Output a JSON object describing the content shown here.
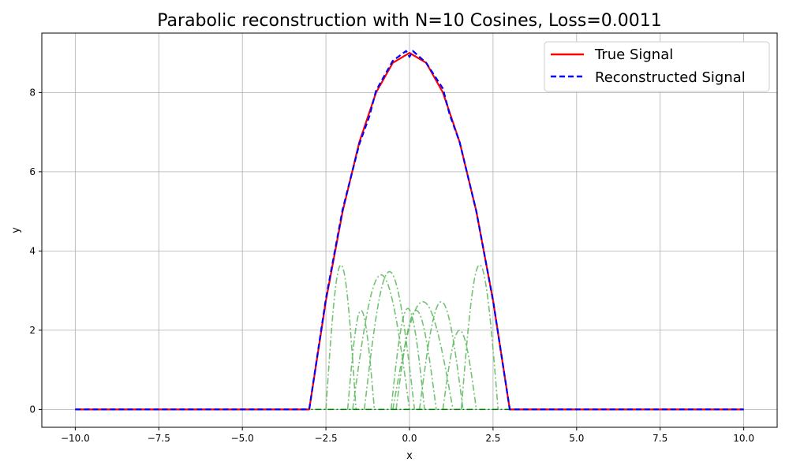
{
  "chart_data": {
    "type": "line",
    "title": "Parabolic reconstruction with N=10 Cosines, Loss=0.0011",
    "xlabel": "x",
    "ylabel": "y",
    "xlim": [
      -11,
      11
    ],
    "ylim": [
      -0.45,
      9.5
    ],
    "xticks": [
      -10,
      -7.5,
      -5,
      -2.5,
      0,
      2.5,
      5,
      7.5,
      10
    ],
    "xtick_labels": [
      "−10.0",
      "−7.5",
      "−5.0",
      "−2.5",
      "0.0",
      "2.5",
      "5.0",
      "7.5",
      "10.0"
    ],
    "yticks": [
      0,
      2,
      4,
      6,
      8
    ],
    "ytick_labels": [
      "0",
      "2",
      "4",
      "6",
      "8"
    ],
    "grid": true,
    "legend_position": "top-right",
    "series": [
      {
        "name": "True Signal",
        "style": "solid",
        "color": "#ff0000",
        "x": [
          -10,
          -3,
          -2.5,
          -2,
          -1.5,
          -1,
          -0.5,
          0,
          0.5,
          1,
          1.5,
          2,
          2.5,
          3,
          10
        ],
        "y": [
          0,
          0,
          2.75,
          5.0,
          6.75,
          8.0,
          8.75,
          9.0,
          8.75,
          8.0,
          6.75,
          5.0,
          2.75,
          0,
          0
        ]
      },
      {
        "name": "Reconstructed Signal",
        "style": "dashed",
        "color": "#0000ff",
        "x": [
          -10,
          -3,
          -2.5,
          -2,
          -1.5,
          -1.2,
          -1,
          -0.5,
          -0.1,
          0,
          0.1,
          0.5,
          1,
          1.2,
          1.5,
          2,
          2.5,
          3,
          10
        ],
        "y": [
          0,
          0,
          2.8,
          5.05,
          6.7,
          7.4,
          8.05,
          8.8,
          9.05,
          8.9,
          9.05,
          8.75,
          8.1,
          7.45,
          6.75,
          5.0,
          2.75,
          0,
          0
        ]
      }
    ],
    "components": [
      {
        "center": -2.05,
        "amplitude": 3.65,
        "width": 0.45
      },
      {
        "center": -1.45,
        "amplitude": 2.5,
        "width": 0.4
      },
      {
        "center": -0.85,
        "amplitude": 3.4,
        "width": 0.85
      },
      {
        "center": -0.6,
        "amplitude": 3.48,
        "width": 0.75
      },
      {
        "center": -0.05,
        "amplitude": 2.55,
        "width": 0.5
      },
      {
        "center": 0.2,
        "amplitude": 2.5,
        "width": 0.6
      },
      {
        "center": 0.4,
        "amplitude": 2.72,
        "width": 0.9
      },
      {
        "center": 0.95,
        "amplitude": 2.72,
        "width": 0.65
      },
      {
        "center": 1.5,
        "amplitude": 2.0,
        "width": 0.5
      },
      {
        "center": 2.1,
        "amplitude": 3.65,
        "width": 0.55
      }
    ],
    "component_color": "#5cb85c"
  }
}
